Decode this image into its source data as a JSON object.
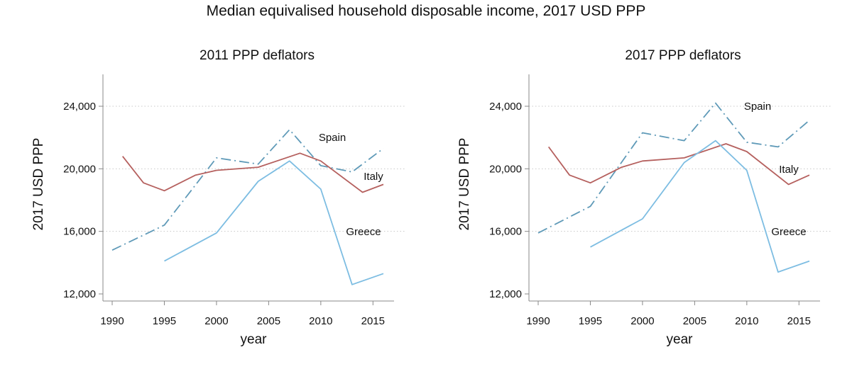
{
  "title": "Median equivalised household disposable income, 2017 USD PPP",
  "chart_data": [
    {
      "type": "line",
      "title": "2011 PPP deflators",
      "xlabel": "year",
      "ylabel": "2017 USD PPP",
      "xlim": [
        1990,
        2017
      ],
      "ylim": [
        12000,
        26000
      ],
      "xticks": [
        1990,
        1995,
        2000,
        2005,
        2010,
        2015
      ],
      "yticks": [
        12000,
        16000,
        20000,
        24000
      ],
      "xtick_labels": [
        "1990",
        "1995",
        "2000",
        "2005",
        "2010",
        "2015"
      ],
      "ytick_labels": [
        "12,000",
        "16,000",
        "20,000",
        "24,000"
      ],
      "grid": "horizontal dotted",
      "series": [
        {
          "name": "Spain",
          "label": "Spain",
          "color": "#5f9ab8",
          "dash": "dashdot",
          "x": [
            1990,
            1995,
            2000,
            2004,
            2007,
            2010,
            2013,
            2016
          ],
          "y": [
            14800,
            16400,
            20700,
            20300,
            22500,
            20200,
            19800,
            21300
          ]
        },
        {
          "name": "Italy",
          "label": "Italy",
          "color": "#b5605e",
          "dash": "solid",
          "x": [
            1991,
            1993,
            1995,
            1998,
            2000,
            2004,
            2008,
            2010,
            2014,
            2016
          ],
          "y": [
            20800,
            19100,
            18600,
            19600,
            19900,
            20100,
            21000,
            20500,
            18500,
            19000
          ]
        },
        {
          "name": "Greece",
          "label": "Greece",
          "color": "#7dbde2",
          "dash": "solid",
          "x": [
            1995,
            2000,
            2004,
            2007,
            2010,
            2013,
            2016
          ],
          "y": [
            14100,
            15900,
            19200,
            20500,
            18700,
            12600,
            13300
          ]
        }
      ]
    },
    {
      "type": "line",
      "title": "2017 PPP deflators",
      "xlabel": "year",
      "ylabel": "2017 USD PPP",
      "xlim": [
        1990,
        2017
      ],
      "ylim": [
        12000,
        26000
      ],
      "xticks": [
        1990,
        1995,
        2000,
        2005,
        2010,
        2015
      ],
      "yticks": [
        12000,
        16000,
        20000,
        24000
      ],
      "xtick_labels": [
        "1990",
        "1995",
        "2000",
        "2005",
        "2010",
        "2015"
      ],
      "ytick_labels": [
        "12,000",
        "16,000",
        "20,000",
        "24,000"
      ],
      "grid": "horizontal dotted",
      "series": [
        {
          "name": "Spain",
          "label": "Spain",
          "color": "#5f9ab8",
          "dash": "dashdot",
          "x": [
            1990,
            1995,
            2000,
            2004,
            2007,
            2010,
            2013,
            2016
          ],
          "y": [
            15900,
            17600,
            22300,
            21800,
            24200,
            21700,
            21400,
            23100
          ]
        },
        {
          "name": "Italy",
          "label": "Italy",
          "color": "#b5605e",
          "dash": "solid",
          "x": [
            1991,
            1993,
            1995,
            1998,
            2000,
            2004,
            2008,
            2010,
            2014,
            2016
          ],
          "y": [
            21400,
            19600,
            19100,
            20100,
            20500,
            20700,
            21600,
            21100,
            19000,
            19600
          ]
        },
        {
          "name": "Greece",
          "label": "Greece",
          "color": "#7dbde2",
          "dash": "solid",
          "x": [
            1995,
            2000,
            2004,
            2007,
            2010,
            2013,
            2016
          ],
          "y": [
            15000,
            16800,
            20400,
            21800,
            19900,
            13400,
            14100
          ]
        }
      ]
    }
  ]
}
